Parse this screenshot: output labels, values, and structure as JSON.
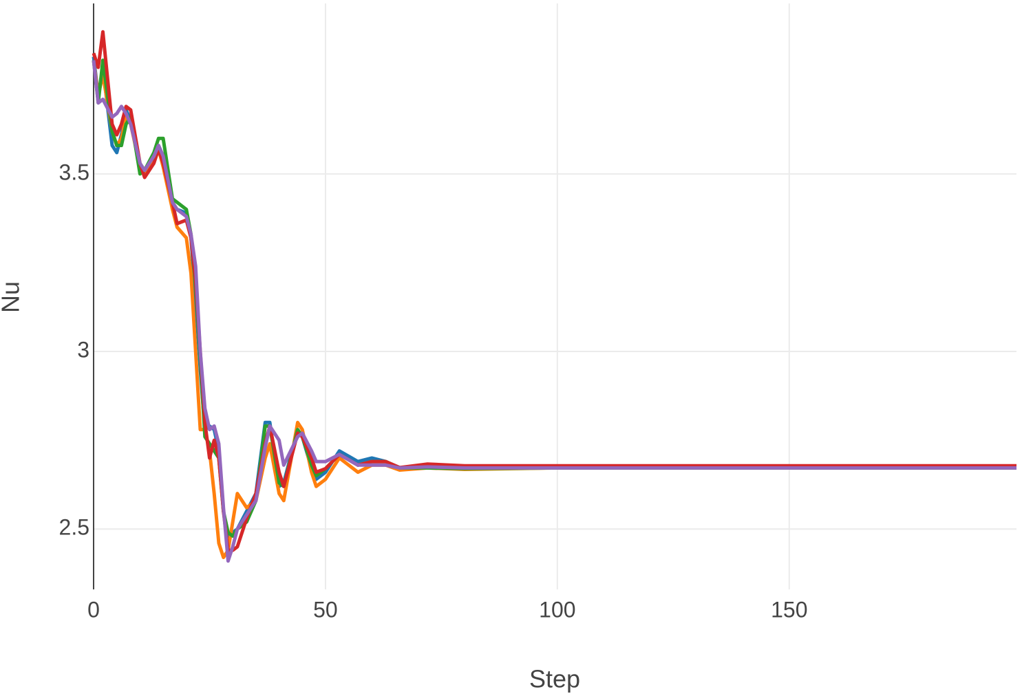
{
  "chart_data": {
    "type": "line",
    "x_label": "Step",
    "y_label": "Nu",
    "x": [
      0,
      1,
      2,
      4,
      5,
      6,
      7,
      8,
      10,
      11,
      13,
      14,
      15,
      17,
      18,
      20,
      21,
      22,
      23,
      24,
      25,
      26,
      27,
      28,
      29,
      30,
      31,
      33,
      35,
      37,
      38,
      40,
      41,
      44,
      45,
      47,
      48,
      50,
      53,
      57,
      60,
      63,
      66,
      72,
      80,
      100,
      150,
      199
    ],
    "series": [
      {
        "color": "#1f77b4",
        "values": [
          3.83,
          3.72,
          3.8,
          3.58,
          3.56,
          3.61,
          3.68,
          3.65,
          3.52,
          3.5,
          3.55,
          3.58,
          3.55,
          3.42,
          3.4,
          3.39,
          3.32,
          3.15,
          2.95,
          2.78,
          2.79,
          2.78,
          2.72,
          2.55,
          2.48,
          2.49,
          2.5,
          2.55,
          2.6,
          2.8,
          2.8,
          2.62,
          2.63,
          2.78,
          2.76,
          2.67,
          2.64,
          2.66,
          2.72,
          2.69,
          2.7,
          2.69,
          2.673,
          2.673,
          2.67,
          2.672,
          2.672,
          2.672
        ]
      },
      {
        "color": "#ff7f0e",
        "values": [
          3.82,
          3.72,
          3.78,
          3.62,
          3.58,
          3.6,
          3.66,
          3.64,
          3.52,
          3.5,
          3.54,
          3.57,
          3.52,
          3.4,
          3.35,
          3.32,
          3.22,
          3.0,
          2.78,
          2.78,
          2.72,
          2.6,
          2.46,
          2.42,
          2.44,
          2.52,
          2.6,
          2.56,
          2.58,
          2.7,
          2.74,
          2.6,
          2.58,
          2.8,
          2.78,
          2.66,
          2.62,
          2.64,
          2.7,
          2.66,
          2.68,
          2.68,
          2.666,
          2.672,
          2.668,
          2.672,
          2.672,
          2.672
        ]
      },
      {
        "color": "#2ca02c",
        "values": [
          3.82,
          3.7,
          3.82,
          3.62,
          3.58,
          3.58,
          3.64,
          3.66,
          3.5,
          3.51,
          3.56,
          3.6,
          3.6,
          3.43,
          3.42,
          3.4,
          3.33,
          3.18,
          2.98,
          2.76,
          2.74,
          2.72,
          2.7,
          2.55,
          2.49,
          2.48,
          2.5,
          2.52,
          2.58,
          2.79,
          2.79,
          2.63,
          2.62,
          2.78,
          2.76,
          2.68,
          2.65,
          2.67,
          2.71,
          2.68,
          2.69,
          2.69,
          2.672,
          2.672,
          2.67,
          2.672,
          2.672,
          2.672
        ]
      },
      {
        "color": "#d62728",
        "values": [
          3.84,
          3.8,
          3.9,
          3.64,
          3.61,
          3.64,
          3.69,
          3.68,
          3.53,
          3.49,
          3.53,
          3.57,
          3.53,
          3.42,
          3.36,
          3.37,
          3.32,
          3.2,
          3.0,
          2.8,
          2.7,
          2.75,
          2.7,
          2.55,
          2.44,
          2.44,
          2.45,
          2.53,
          2.6,
          2.74,
          2.79,
          2.66,
          2.62,
          2.77,
          2.76,
          2.7,
          2.66,
          2.67,
          2.71,
          2.68,
          2.69,
          2.69,
          2.673,
          2.683,
          2.678,
          2.678,
          2.678,
          2.678
        ]
      },
      {
        "color": "#9467bd",
        "values": [
          3.82,
          3.7,
          3.71,
          3.66,
          3.67,
          3.69,
          3.67,
          3.64,
          3.53,
          3.51,
          3.55,
          3.58,
          3.55,
          3.42,
          3.4,
          3.38,
          3.33,
          3.24,
          3.0,
          2.84,
          2.78,
          2.79,
          2.74,
          2.56,
          2.41,
          2.45,
          2.5,
          2.54,
          2.58,
          2.73,
          2.79,
          2.75,
          2.68,
          2.76,
          2.77,
          2.72,
          2.69,
          2.69,
          2.71,
          2.68,
          2.68,
          2.68,
          2.672,
          2.675,
          2.672,
          2.672,
          2.672,
          2.672
        ]
      }
    ],
    "xlim": [
      0,
      199
    ],
    "ylim": [
      2.33,
      3.98
    ],
    "xticks": [
      0,
      50,
      100,
      150
    ],
    "yticks": [
      2.5,
      3,
      3.5
    ],
    "grid": true
  }
}
